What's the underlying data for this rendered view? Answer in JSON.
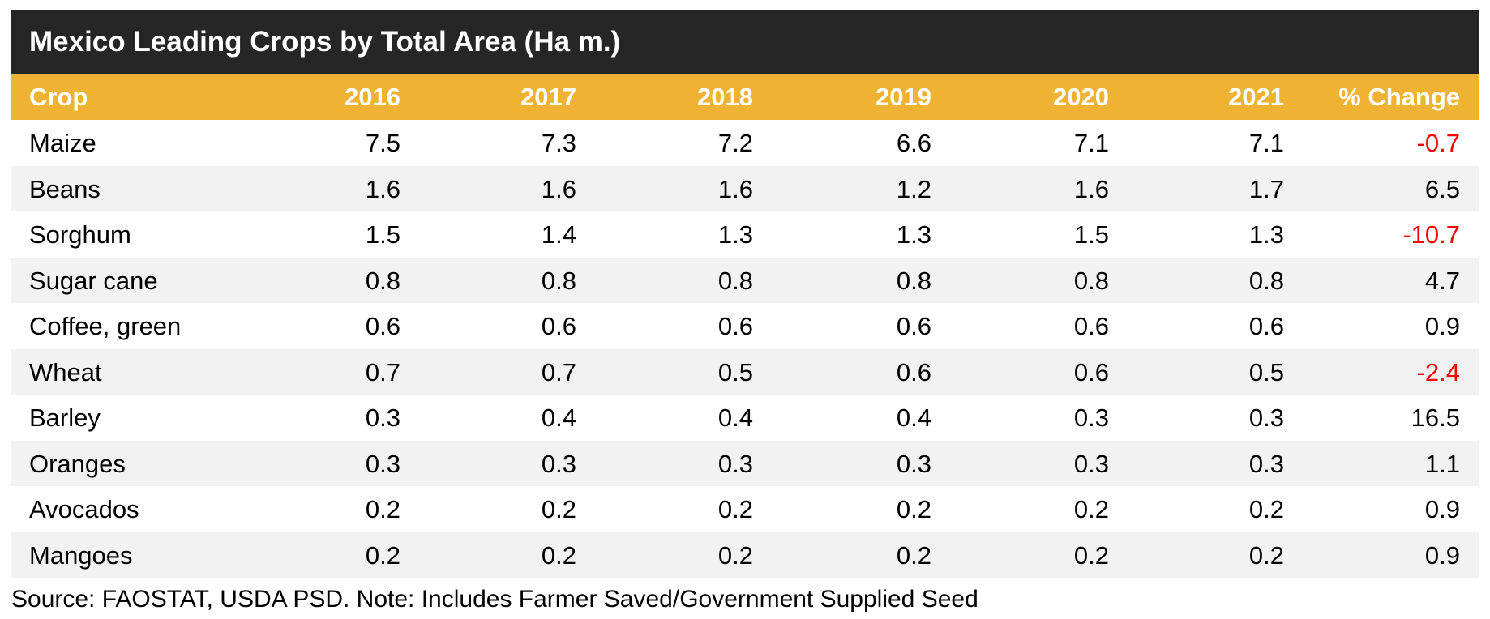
{
  "table": {
    "title": "Mexico Leading Crops by Total Area (Ha m.)",
    "columns": [
      "Crop",
      "2016",
      "2017",
      "2018",
      "2019",
      "2020",
      "2021",
      "% Change"
    ],
    "rows": [
      [
        "Maize",
        7.5,
        7.3,
        7.2,
        6.6,
        7.1,
        7.1,
        -0.7
      ],
      [
        "Beans",
        1.6,
        1.6,
        1.6,
        1.2,
        1.6,
        1.7,
        6.5
      ],
      [
        "Sorghum",
        1.5,
        1.4,
        1.3,
        1.3,
        1.5,
        1.3,
        -10.7
      ],
      [
        "Sugar cane",
        0.8,
        0.8,
        0.8,
        0.8,
        0.8,
        0.8,
        4.7
      ],
      [
        "Coffee, green",
        0.6,
        0.6,
        0.6,
        0.6,
        0.6,
        0.6,
        0.9
      ],
      [
        "Wheat",
        0.7,
        0.7,
        0.5,
        0.6,
        0.6,
        0.5,
        -2.4
      ],
      [
        "Barley",
        0.3,
        0.4,
        0.4,
        0.4,
        0.3,
        0.3,
        16.5
      ],
      [
        "Oranges",
        0.3,
        0.3,
        0.3,
        0.3,
        0.3,
        0.3,
        1.1
      ],
      [
        "Avocados",
        0.2,
        0.2,
        0.2,
        0.2,
        0.2,
        0.2,
        0.9
      ],
      [
        "Mangoes",
        0.2,
        0.2,
        0.2,
        0.2,
        0.2,
        0.2,
        0.9
      ]
    ],
    "negative_color": "#ff0000",
    "source": "Source: FAOSTAT, USDA PSD. Note: Includes Farmer Saved/Government Supplied Seed"
  }
}
